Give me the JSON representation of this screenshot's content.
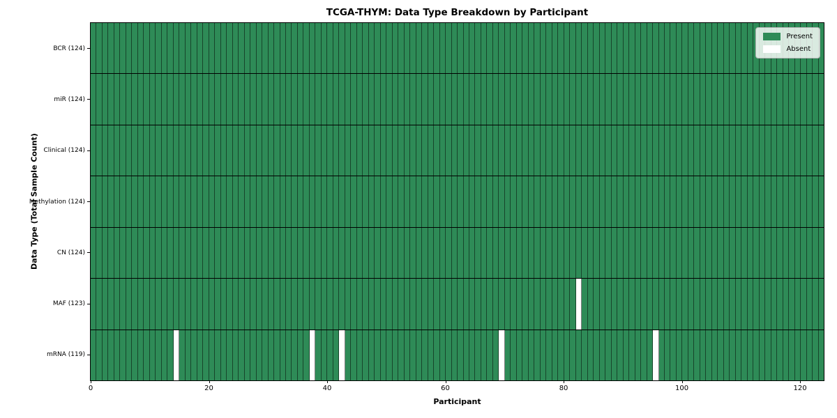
{
  "title": "TCGA-THYM: Data Type Breakdown by Participant",
  "chart_data": {
    "type": "heatmap",
    "title": "TCGA-THYM: Data Type Breakdown by Participant",
    "xlabel": "Participant",
    "ylabel": "Data Type (Total Sample Count)",
    "xlim": [
      0,
      124
    ],
    "n_participants": 124,
    "x_ticks": [
      0,
      20,
      40,
      60,
      80,
      100,
      120
    ],
    "grid": "cell-borders",
    "legend_position": "upper right",
    "legend": {
      "entries": [
        {
          "label": "Present",
          "color": "#2e8b57"
        },
        {
          "label": "Absent",
          "color": "#ffffff"
        }
      ]
    },
    "rows": [
      {
        "label": "BCR (124)",
        "data_type": "BCR",
        "present_count": 124,
        "absent_participants": []
      },
      {
        "label": "miR (124)",
        "data_type": "miR",
        "present_count": 124,
        "absent_participants": []
      },
      {
        "label": "Clinical (124)",
        "data_type": "Clinical",
        "present_count": 124,
        "absent_participants": []
      },
      {
        "label": "Methylation (124)",
        "data_type": "Methylation",
        "present_count": 124,
        "absent_participants": []
      },
      {
        "label": "CN (124)",
        "data_type": "CN",
        "present_count": 124,
        "absent_participants": []
      },
      {
        "label": "MAF (123)",
        "data_type": "MAF",
        "present_count": 123,
        "absent_participants": [
          82
        ]
      },
      {
        "label": "mRNA (119)",
        "data_type": "mRNA",
        "present_count": 119,
        "absent_participants": [
          14,
          37,
          42,
          69,
          95
        ]
      }
    ],
    "colors": {
      "present": "#2e8b57",
      "absent": "#ffffff",
      "cell_gridline": "rgba(0,0,0,0.5)",
      "row_boundary": "#000000"
    }
  }
}
